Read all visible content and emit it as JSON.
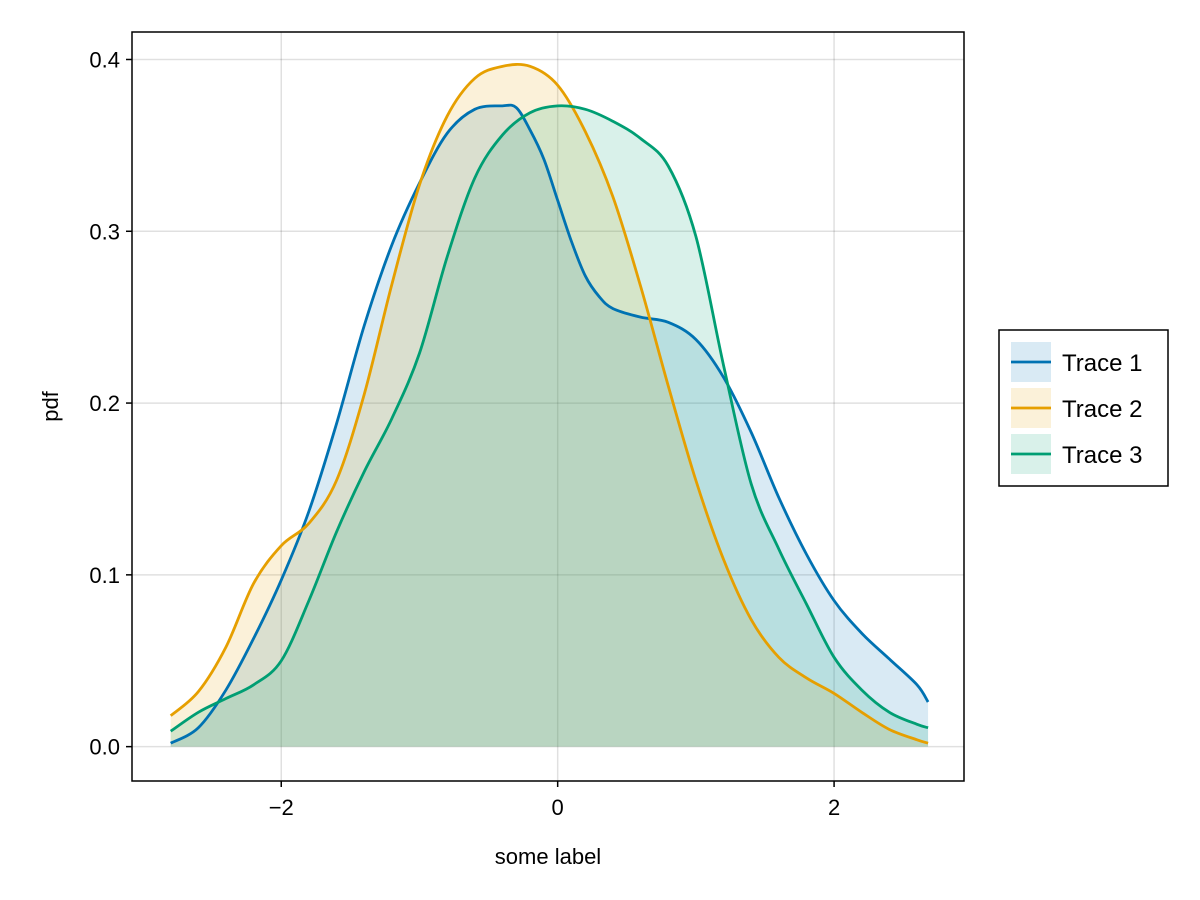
{
  "chart_data": {
    "type": "area",
    "title": "",
    "xlabel": "some label",
    "ylabel": "pdf",
    "xlim": [
      -3.08,
      2.94
    ],
    "ylim": [
      -0.02,
      0.416
    ],
    "xticks": [
      -2,
      0,
      2
    ],
    "xtick_labels": [
      "−2",
      "0",
      "2"
    ],
    "yticks": [
      0.0,
      0.1,
      0.2,
      0.3,
      0.4
    ],
    "ytick_labels": [
      "0.0",
      "0.1",
      "0.2",
      "0.3",
      "0.4"
    ],
    "grid": true,
    "legend_position": "right",
    "series": [
      {
        "name": "Trace 1",
        "color": "#0072b2",
        "fill_opacity": 0.15,
        "points": [
          [
            -2.8,
            0.002
          ],
          [
            -2.6,
            0.011
          ],
          [
            -2.4,
            0.033
          ],
          [
            -2.2,
            0.063
          ],
          [
            -2.0,
            0.097
          ],
          [
            -1.8,
            0.137
          ],
          [
            -1.6,
            0.188
          ],
          [
            -1.4,
            0.245
          ],
          [
            -1.2,
            0.292
          ],
          [
            -1.0,
            0.328
          ],
          [
            -0.8,
            0.357
          ],
          [
            -0.6,
            0.371
          ],
          [
            -0.4,
            0.373
          ],
          [
            -0.3,
            0.372
          ],
          [
            -0.2,
            0.359
          ],
          [
            -0.1,
            0.342
          ],
          [
            0.0,
            0.318
          ],
          [
            0.1,
            0.294
          ],
          [
            0.2,
            0.274
          ],
          [
            0.3,
            0.262
          ],
          [
            0.4,
            0.255
          ],
          [
            0.6,
            0.25
          ],
          [
            0.8,
            0.247
          ],
          [
            1.0,
            0.237
          ],
          [
            1.2,
            0.215
          ],
          [
            1.4,
            0.183
          ],
          [
            1.6,
            0.145
          ],
          [
            1.8,
            0.112
          ],
          [
            2.0,
            0.085
          ],
          [
            2.2,
            0.066
          ],
          [
            2.4,
            0.051
          ],
          [
            2.6,
            0.036
          ],
          [
            2.68,
            0.026
          ]
        ]
      },
      {
        "name": "Trace 2",
        "color": "#e69f00",
        "fill_opacity": 0.15,
        "points": [
          [
            -2.8,
            0.018
          ],
          [
            -2.6,
            0.032
          ],
          [
            -2.4,
            0.058
          ],
          [
            -2.2,
            0.095
          ],
          [
            -2.0,
            0.117
          ],
          [
            -1.8,
            0.13
          ],
          [
            -1.6,
            0.155
          ],
          [
            -1.4,
            0.205
          ],
          [
            -1.2,
            0.269
          ],
          [
            -1.0,
            0.327
          ],
          [
            -0.8,
            0.367
          ],
          [
            -0.6,
            0.389
          ],
          [
            -0.4,
            0.396
          ],
          [
            -0.2,
            0.396
          ],
          [
            0.0,
            0.385
          ],
          [
            0.2,
            0.358
          ],
          [
            0.4,
            0.32
          ],
          [
            0.6,
            0.268
          ],
          [
            0.8,
            0.21
          ],
          [
            1.0,
            0.155
          ],
          [
            1.2,
            0.109
          ],
          [
            1.4,
            0.074
          ],
          [
            1.6,
            0.052
          ],
          [
            1.8,
            0.04
          ],
          [
            2.0,
            0.031
          ],
          [
            2.2,
            0.02
          ],
          [
            2.4,
            0.01
          ],
          [
            2.6,
            0.004
          ],
          [
            2.68,
            0.002
          ]
        ]
      },
      {
        "name": "Trace 3",
        "color": "#009e73",
        "fill_opacity": 0.15,
        "points": [
          [
            -2.8,
            0.009
          ],
          [
            -2.6,
            0.02
          ],
          [
            -2.4,
            0.028
          ],
          [
            -2.2,
            0.036
          ],
          [
            -2.0,
            0.05
          ],
          [
            -1.8,
            0.085
          ],
          [
            -1.6,
            0.125
          ],
          [
            -1.4,
            0.16
          ],
          [
            -1.2,
            0.191
          ],
          [
            -1.0,
            0.229
          ],
          [
            -0.8,
            0.285
          ],
          [
            -0.6,
            0.331
          ],
          [
            -0.4,
            0.356
          ],
          [
            -0.2,
            0.369
          ],
          [
            0.0,
            0.373
          ],
          [
            0.2,
            0.371
          ],
          [
            0.4,
            0.364
          ],
          [
            0.6,
            0.354
          ],
          [
            0.8,
            0.338
          ],
          [
            1.0,
            0.297
          ],
          [
            1.2,
            0.222
          ],
          [
            1.4,
            0.153
          ],
          [
            1.6,
            0.115
          ],
          [
            1.8,
            0.083
          ],
          [
            2.0,
            0.052
          ],
          [
            2.2,
            0.033
          ],
          [
            2.4,
            0.02
          ],
          [
            2.6,
            0.013
          ],
          [
            2.68,
            0.011
          ]
        ]
      }
    ]
  }
}
